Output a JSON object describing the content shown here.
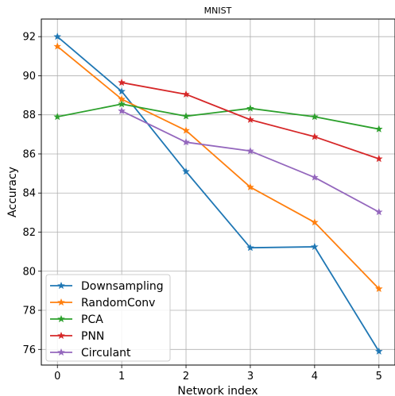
{
  "chart_data": {
    "type": "line",
    "title": "MNIST",
    "xlabel": "Network index",
    "ylabel": "Accuracy",
    "xlim": [
      -0.25,
      5.25
    ],
    "ylim": [
      75.2,
      92.9
    ],
    "xticks": [
      0,
      1,
      2,
      3,
      4,
      5
    ],
    "yticks": [
      76,
      78,
      80,
      82,
      84,
      86,
      88,
      90,
      92
    ],
    "grid": true,
    "legend_position": "bottom-left",
    "marker": "star",
    "series": [
      {
        "name": "Downsampling",
        "color": "#1f77b4",
        "x": [
          0,
          1,
          2,
          3,
          4,
          5
        ],
        "y": [
          92.0,
          89.2,
          85.1,
          81.2,
          81.25,
          75.9
        ]
      },
      {
        "name": "RandomConv",
        "color": "#ff7f0e",
        "x": [
          0,
          1,
          2,
          3,
          4,
          5
        ],
        "y": [
          91.5,
          88.8,
          87.2,
          84.3,
          82.5,
          79.1
        ]
      },
      {
        "name": "PCA",
        "color": "#2ca02c",
        "x": [
          0,
          1,
          2,
          3,
          4,
          5
        ],
        "y": [
          87.9,
          88.55,
          87.93,
          88.33,
          87.9,
          87.27
        ]
      },
      {
        "name": "PNN",
        "color": "#d62728",
        "x": [
          1,
          2,
          3,
          4,
          5
        ],
        "y": [
          89.65,
          89.05,
          87.75,
          86.88,
          85.75
        ]
      },
      {
        "name": "Circulant",
        "color": "#9467bd",
        "x": [
          1,
          2,
          3,
          4,
          5
        ],
        "y": [
          88.2,
          86.6,
          86.15,
          84.8,
          83.03
        ]
      }
    ]
  }
}
